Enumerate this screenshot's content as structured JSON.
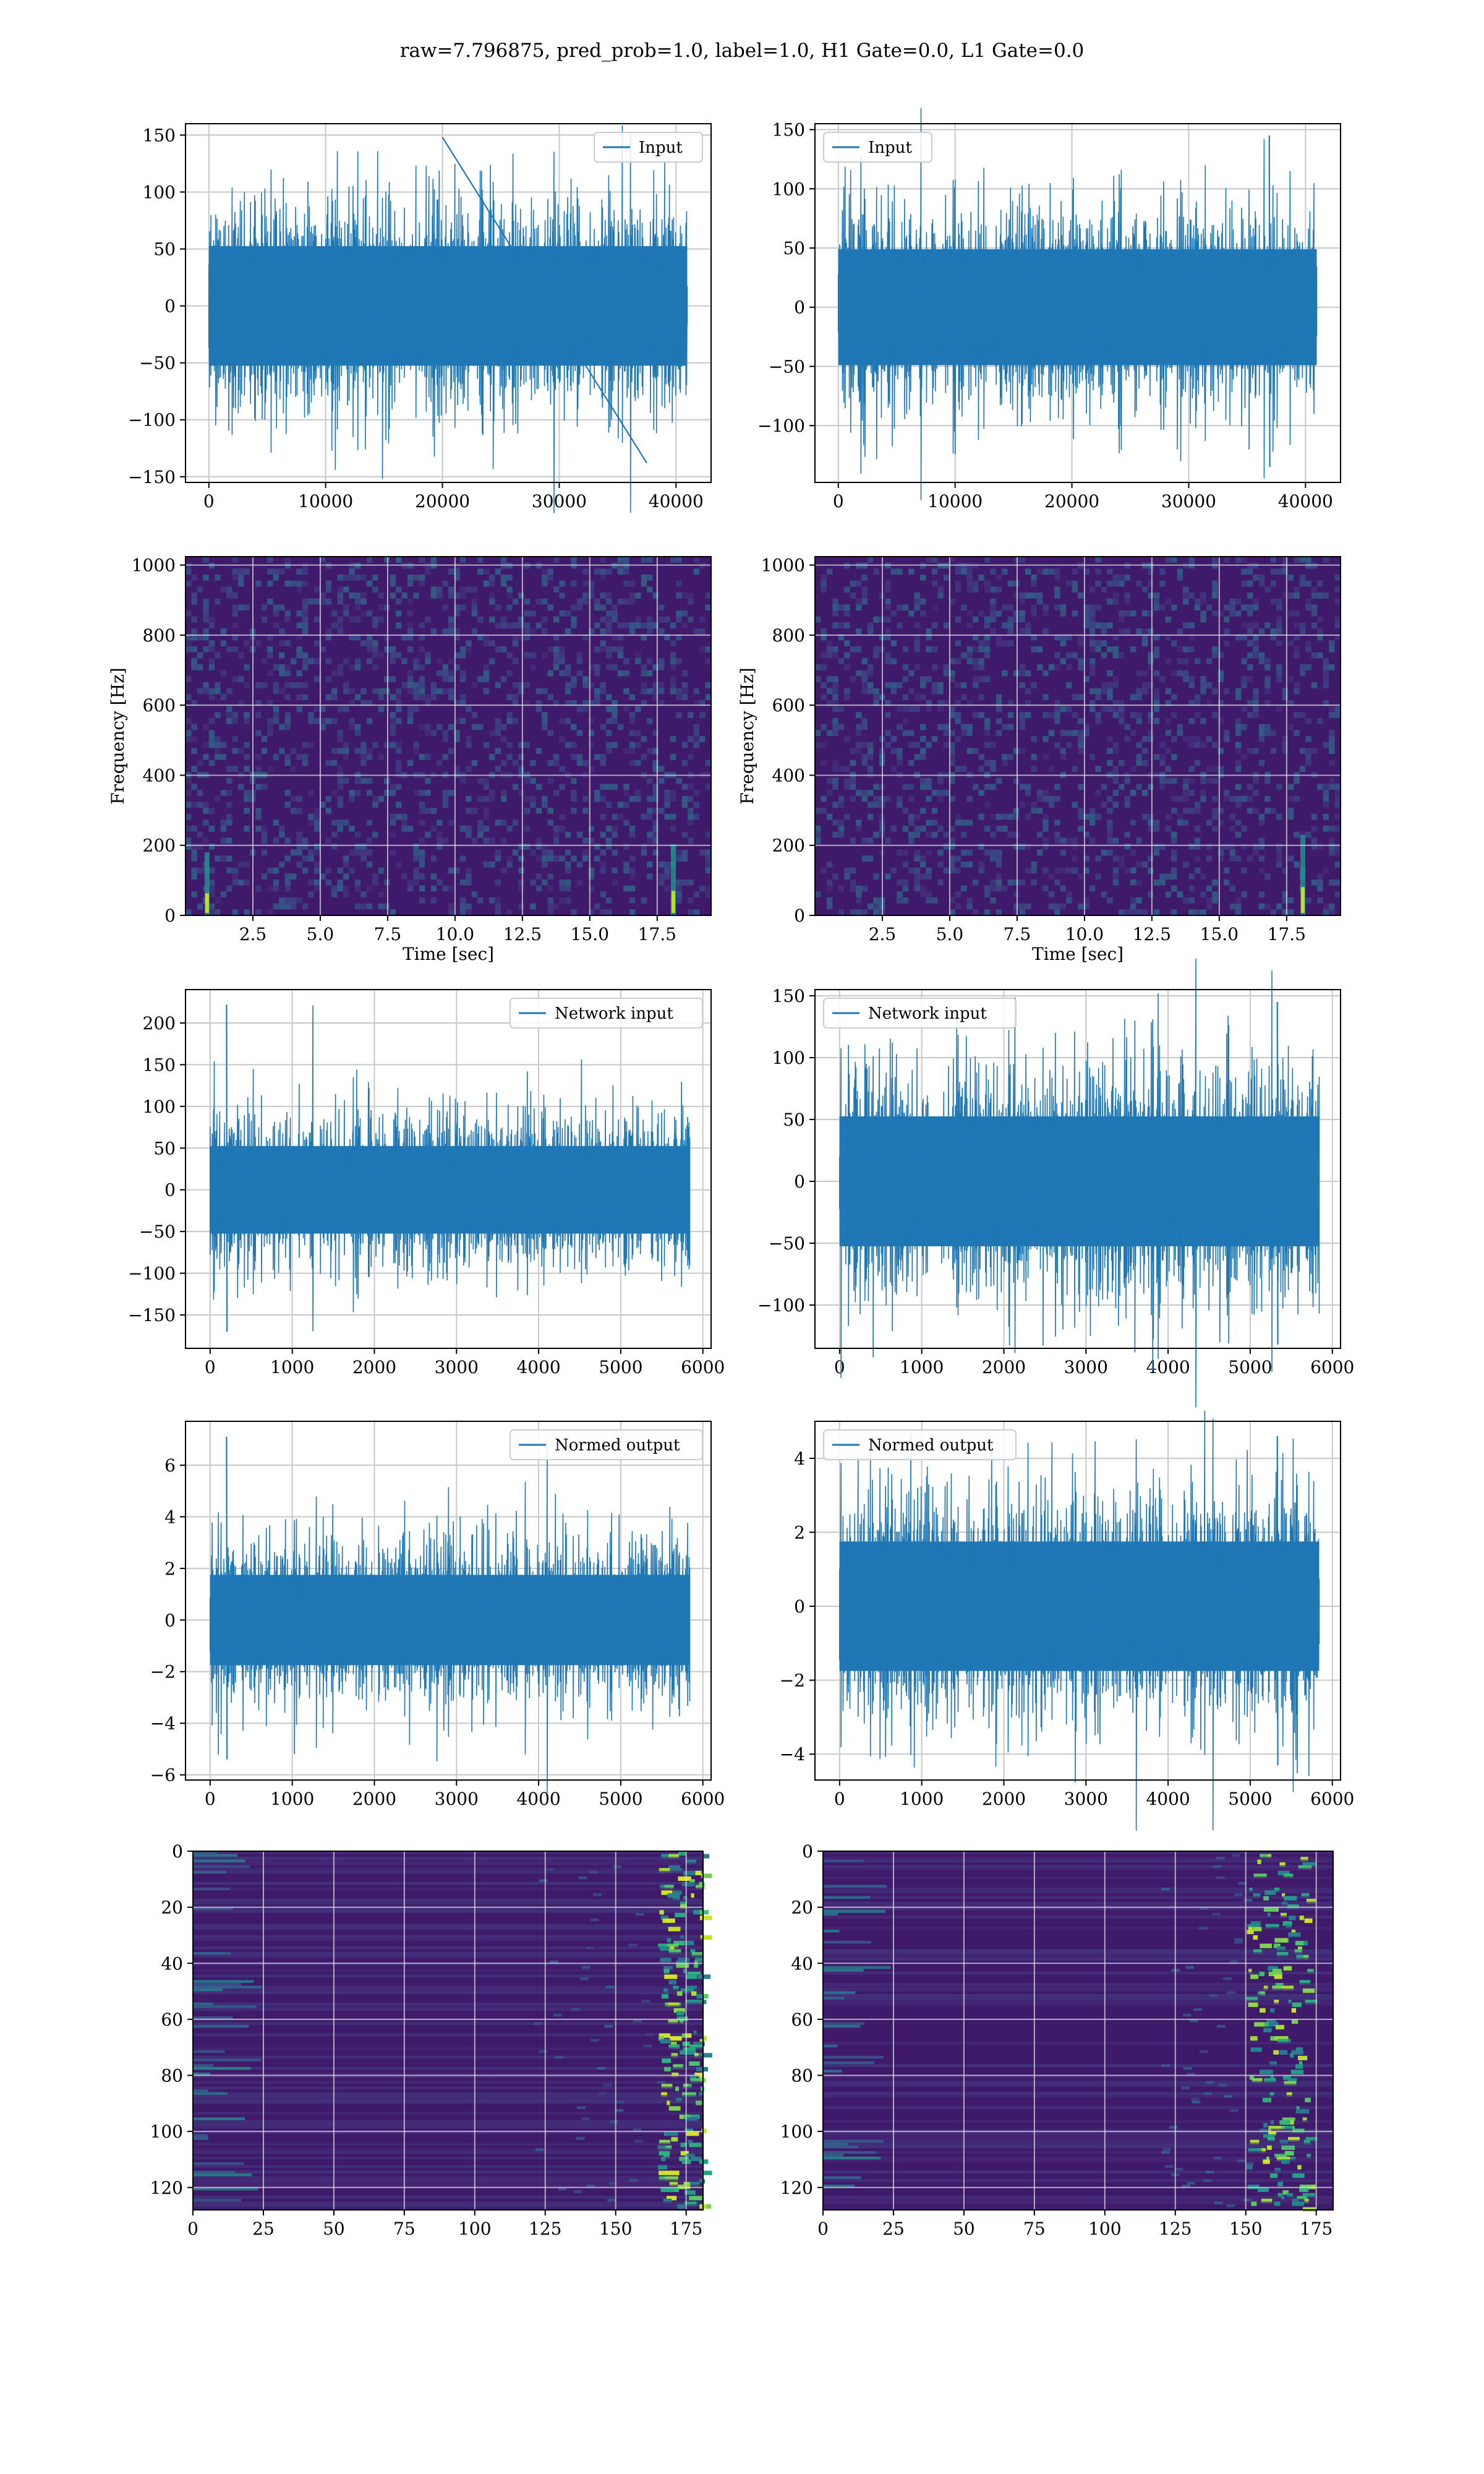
{
  "figure": {
    "suptitle": "raw=7.796875, pred_prob=1.0, label=1.0, H1 Gate=0.0, L1 Gate=0.0",
    "line_color": "#1f77b4",
    "grid_color": "#c8c8c8",
    "spectrogram_bg": "#3f1a6a",
    "colormap": "viridis"
  },
  "chart_data": [
    {
      "id": "input-left",
      "type": "line",
      "grid": true,
      "legend_position": "upper right",
      "series": [
        {
          "name": "Input",
          "n_points": 40960,
          "amplitude_std": 30,
          "peak": [
            20000,
            148
          ],
          "trough": [
            37500,
            -138
          ]
        }
      ],
      "xlim": [
        -2000,
        43000
      ],
      "ylim": [
        -155,
        160
      ],
      "xticks": [
        0,
        10000,
        20000,
        30000,
        40000
      ],
      "xtick_labels": [
        "0",
        "10000",
        "20000",
        "30000",
        "40000"
      ],
      "yticks": [
        -150,
        -100,
        -50,
        0,
        50,
        100,
        150
      ],
      "ytick_labels": [
        "−150",
        "−100",
        "−50",
        "0",
        "50",
        "100",
        "150"
      ],
      "xlabel": "",
      "ylabel": ""
    },
    {
      "id": "input-right",
      "type": "line",
      "grid": true,
      "legend_position": "upper left",
      "series": [
        {
          "name": "Input",
          "n_points": 40960,
          "amplitude_std": 28,
          "peak": [
            36900,
            145
          ],
          "trough": [
            36900,
            -135
          ]
        }
      ],
      "xlim": [
        -2000,
        43000
      ],
      "ylim": [
        -148,
        155
      ],
      "xticks": [
        0,
        10000,
        20000,
        30000,
        40000
      ],
      "xtick_labels": [
        "0",
        "10000",
        "20000",
        "30000",
        "40000"
      ],
      "yticks": [
        -100,
        -50,
        0,
        50,
        100,
        150
      ],
      "ytick_labels": [
        "−100",
        "−50",
        "0",
        "50",
        "100",
        "150"
      ],
      "xlabel": "",
      "ylabel": ""
    },
    {
      "id": "spectrogram-left",
      "type": "heatmap",
      "grid": true,
      "xlim": [
        0,
        19.5
      ],
      "ylim": [
        0,
        1024
      ],
      "xticks": [
        2.5,
        5.0,
        7.5,
        10.0,
        12.5,
        15.0,
        17.5
      ],
      "xtick_labels": [
        "2.5",
        "5.0",
        "7.5",
        "10.0",
        "12.5",
        "15.0",
        "17.5"
      ],
      "yticks": [
        0,
        200,
        400,
        600,
        800,
        1000
      ],
      "ytick_labels": [
        "0",
        "200",
        "400",
        "600",
        "800",
        "1000"
      ],
      "xlabel": "Time [sec]",
      "ylabel": "Frequency [Hz]",
      "bright_features": [
        {
          "t": 0.8,
          "f_max": 180
        },
        {
          "t": 18.1,
          "f_max": 200
        }
      ]
    },
    {
      "id": "spectrogram-right",
      "type": "heatmap",
      "grid": true,
      "xlim": [
        0,
        19.5
      ],
      "ylim": [
        0,
        1024
      ],
      "xticks": [
        2.5,
        5.0,
        7.5,
        10.0,
        12.5,
        15.0,
        17.5
      ],
      "xtick_labels": [
        "2.5",
        "5.0",
        "7.5",
        "10.0",
        "12.5",
        "15.0",
        "17.5"
      ],
      "yticks": [
        0,
        200,
        400,
        600,
        800,
        1000
      ],
      "ytick_labels": [
        "0",
        "200",
        "400",
        "600",
        "800",
        "1000"
      ],
      "xlabel": "Time [sec]",
      "ylabel": "Frequency [Hz]",
      "bright_features": [
        {
          "t": 18.1,
          "f_max": 230
        }
      ]
    },
    {
      "id": "network-input-left",
      "type": "line",
      "grid": true,
      "legend_position": "upper right",
      "series": [
        {
          "name": "Network input",
          "n_points": 5840,
          "amplitude_std": 30,
          "peak": [
            200,
            222
          ],
          "trough": [
            200,
            -170
          ]
        }
      ],
      "xlim": [
        -300,
        6100
      ],
      "ylim": [
        -190,
        240
      ],
      "xticks": [
        0,
        1000,
        2000,
        3000,
        4000,
        5000,
        6000
      ],
      "xtick_labels": [
        "0",
        "1000",
        "2000",
        "3000",
        "4000",
        "5000",
        "6000"
      ],
      "yticks": [
        -150,
        -100,
        -50,
        0,
        50,
        100,
        150,
        200
      ],
      "ytick_labels": [
        "−150",
        "−100",
        "−50",
        "0",
        "50",
        "100",
        "150",
        "200"
      ],
      "xlabel": "",
      "ylabel": ""
    },
    {
      "id": "network-input-right",
      "type": "line",
      "grid": true,
      "legend_position": "upper left",
      "series": [
        {
          "name": "Network input",
          "n_points": 5840,
          "amplitude_std": 30,
          "peak": [
            5330,
            145
          ],
          "trough": [
            5330,
            -132
          ]
        }
      ],
      "xlim": [
        -300,
        6100
      ],
      "ylim": [
        -135,
        155
      ],
      "xticks": [
        0,
        1000,
        2000,
        3000,
        4000,
        5000,
        6000
      ],
      "xtick_labels": [
        "0",
        "1000",
        "2000",
        "3000",
        "4000",
        "5000",
        "6000"
      ],
      "yticks": [
        -100,
        -50,
        0,
        50,
        100,
        150
      ],
      "ytick_labels": [
        "−100",
        "−50",
        "0",
        "50",
        "100",
        "150"
      ],
      "xlabel": "",
      "ylabel": ""
    },
    {
      "id": "normed-output-left",
      "type": "line",
      "grid": true,
      "legend_position": "upper right",
      "series": [
        {
          "name": "Normed output",
          "n_points": 5840,
          "amplitude_std": 1,
          "peak": [
            200,
            7.1
          ],
          "trough": [
            200,
            -5.4
          ]
        }
      ],
      "xlim": [
        -300,
        6100
      ],
      "ylim": [
        -6.2,
        7.7
      ],
      "xticks": [
        0,
        1000,
        2000,
        3000,
        4000,
        5000,
        6000
      ],
      "xtick_labels": [
        "0",
        "1000",
        "2000",
        "3000",
        "4000",
        "5000",
        "6000"
      ],
      "yticks": [
        -6,
        -4,
        -2,
        0,
        2,
        4,
        6
      ],
      "ytick_labels": [
        "−6",
        "−4",
        "−2",
        "0",
        "2",
        "4",
        "6"
      ],
      "xlabel": "",
      "ylabel": ""
    },
    {
      "id": "normed-output-right",
      "type": "line",
      "grid": true,
      "legend_position": "upper left",
      "series": [
        {
          "name": "Normed output",
          "n_points": 5840,
          "amplitude_std": 1,
          "peak": [
            5330,
            4.6
          ],
          "trough": [
            5330,
            -4.3
          ]
        }
      ],
      "xlim": [
        -300,
        6100
      ],
      "ylim": [
        -4.7,
        5.0
      ],
      "xticks": [
        0,
        1000,
        2000,
        3000,
        4000,
        5000,
        6000
      ],
      "xtick_labels": [
        "0",
        "1000",
        "2000",
        "3000",
        "4000",
        "5000",
        "6000"
      ],
      "yticks": [
        -4,
        -2,
        0,
        2,
        4
      ],
      "ytick_labels": [
        "−4",
        "−2",
        "0",
        "2",
        "4"
      ],
      "xlabel": "",
      "ylabel": ""
    },
    {
      "id": "features-left",
      "type": "heatmap",
      "grid": true,
      "xlim": [
        0,
        181
      ],
      "ylim": [
        128,
        0
      ],
      "xticks": [
        0,
        25,
        50,
        75,
        100,
        125,
        150,
        175
      ],
      "xtick_labels": [
        "0",
        "25",
        "50",
        "75",
        "100",
        "125",
        "150",
        "175"
      ],
      "yticks": [
        0,
        20,
        40,
        60,
        80,
        100,
        120
      ],
      "ytick_labels": [
        "0",
        "20",
        "40",
        "60",
        "80",
        "100",
        "120"
      ],
      "xlabel": "",
      "ylabel": "",
      "activation_focus": [
        165,
        181
      ]
    },
    {
      "id": "features-right",
      "type": "heatmap",
      "grid": true,
      "xlim": [
        0,
        181
      ],
      "ylim": [
        128,
        0
      ],
      "xticks": [
        0,
        25,
        50,
        75,
        100,
        125,
        150,
        175
      ],
      "xtick_labels": [
        "0",
        "25",
        "50",
        "75",
        "100",
        "125",
        "150",
        "175"
      ],
      "yticks": [
        0,
        20,
        40,
        60,
        80,
        100,
        120
      ],
      "ytick_labels": [
        "0",
        "20",
        "40",
        "60",
        "80",
        "100",
        "120"
      ],
      "xlabel": "",
      "ylabel": "",
      "activation_focus": [
        150,
        172
      ]
    }
  ]
}
